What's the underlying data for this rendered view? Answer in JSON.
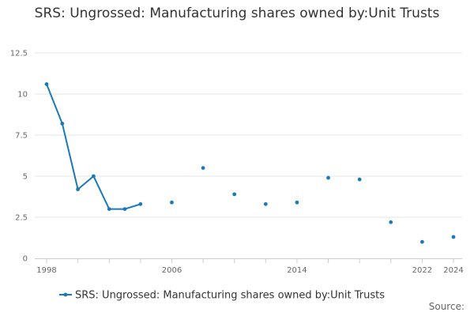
{
  "chart_data": {
    "type": "line",
    "title": "SRS: Ungrossed: Manufacturing shares owned by:Unit Trusts",
    "xlabel": "",
    "ylabel": "",
    "xlim": [
      1998,
      2024
    ],
    "ylim": [
      0,
      12.5
    ],
    "x_ticks": [
      1998,
      2006,
      2014,
      2022,
      2024
    ],
    "y_ticks": [
      0,
      2.5,
      5,
      7.5,
      10,
      12.5
    ],
    "y_tick_labels": [
      "0",
      "2.5",
      "5",
      "7.5",
      "10",
      "12.5"
    ],
    "grid": true,
    "legend_position": "bottom",
    "series": [
      {
        "name": "SRS: Ungrossed: Manufacturing shares owned by:Unit Trusts",
        "color": "#1a7ab5",
        "x": [
          1998,
          1999,
          2000,
          2001,
          2002,
          2003,
          2004,
          2006,
          2008,
          2010,
          2012,
          2014,
          2016,
          2018,
          2020,
          2022,
          2024
        ],
        "values": [
          10.6,
          8.2,
          4.2,
          5.0,
          3.0,
          3.0,
          3.3,
          3.4,
          5.5,
          3.9,
          3.3,
          3.4,
          4.9,
          4.8,
          2.2,
          1.0,
          1.3
        ]
      }
    ],
    "source": "Source:"
  }
}
